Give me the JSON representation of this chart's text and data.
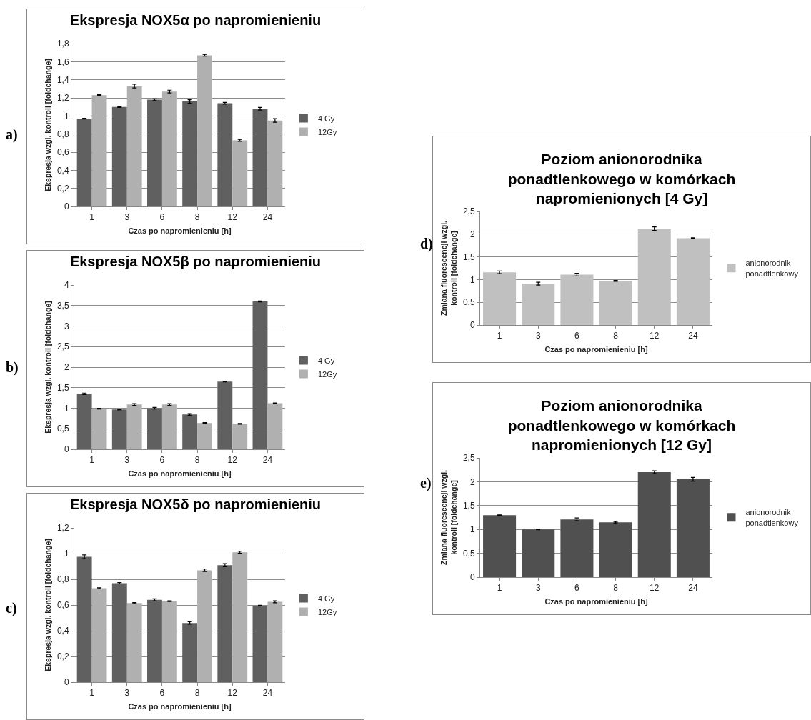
{
  "chart_data": [
    {
      "type": "bar",
      "title": "Ekspresja NOX5α po napromienieniu",
      "xlabel": "Czas po napromienieniu [h]",
      "ylabel": "Ekspresja wzgl. kontroli [foldchange]",
      "annotations": [
        "a)"
      ],
      "categories": [
        "1",
        "3",
        "6",
        "8",
        "12",
        "24"
      ],
      "series": [
        {
          "name": "4 Gy",
          "color": "#606060",
          "values": [
            0.97,
            1.1,
            1.18,
            1.16,
            1.14,
            1.08
          ],
          "errors": [
            0.005,
            0.005,
            0.01,
            0.02,
            0.01,
            0.015
          ]
        },
        {
          "name": "12Gy",
          "color": "#b0b0b0",
          "values": [
            1.23,
            1.33,
            1.27,
            1.67,
            0.73,
            0.95
          ],
          "errors": [
            0.005,
            0.02,
            0.015,
            0.01,
            0.01,
            0.02
          ]
        }
      ],
      "ylim": [
        0,
        1.8
      ],
      "yticks": [
        0,
        {
          "value": 0.2,
          "label": "0,2"
        },
        {
          "value": 0.4,
          "label": "0,4"
        },
        {
          "value": 0.6,
          "label": "0,6"
        },
        {
          "value": 0.8,
          "label": "0,8"
        },
        1,
        {
          "value": 1.2,
          "label": "1,2"
        },
        {
          "value": 1.4,
          "label": "1,4"
        },
        {
          "value": 1.6,
          "label": "1,6"
        },
        {
          "value": 1.8,
          "label": "1,8"
        }
      ],
      "grid": "y",
      "legend": "right"
    },
    {
      "type": "bar",
      "title": "Ekspresja NOX5β po napromienieniu",
      "xlabel": "Czas po napromienieniu [h]",
      "ylabel": "Ekspresja wzgl. kontroli [foldchange]",
      "annotations": [
        "b)"
      ],
      "categories": [
        "1",
        "3",
        "6",
        "8",
        "12",
        "24"
      ],
      "series": [
        {
          "name": "4 Gy",
          "color": "#606060",
          "values": [
            1.35,
            0.97,
            1.0,
            0.85,
            1.65,
            3.6
          ],
          "errors": [
            0.02,
            0.01,
            0.02,
            0.02,
            0.01,
            0.01
          ]
        },
        {
          "name": "12Gy",
          "color": "#b0b0b0",
          "values": [
            0.99,
            1.09,
            1.09,
            0.64,
            0.62,
            1.12
          ],
          "errors": [
            0.01,
            0.02,
            0.02,
            0.01,
            0.01,
            0.01
          ]
        }
      ],
      "ylim": [
        0,
        4
      ],
      "yticks": [
        0,
        {
          "value": 0.5,
          "label": "0,5"
        },
        1,
        {
          "value": 1.5,
          "label": "1,5"
        },
        2,
        {
          "value": 2.5,
          "label": "2,5"
        },
        3,
        {
          "value": 3.5,
          "label": "3,5"
        },
        4
      ],
      "grid": "y",
      "legend": "right"
    },
    {
      "type": "bar",
      "title": "Ekspresja NOX5δ po napromienieniu",
      "xlabel": "Czas po napromienieniu [h]",
      "ylabel": "Ekspresja wzgl. kontroli [foldchange]",
      "annotations": [
        "c)"
      ],
      "categories": [
        "1",
        "3",
        "6",
        "8",
        "12",
        "24"
      ],
      "series": [
        {
          "name": "4 Gy",
          "color": "#606060",
          "values": [
            0.975,
            0.77,
            0.64,
            0.46,
            0.91,
            0.595
          ],
          "errors": [
            0.015,
            0.005,
            0.008,
            0.01,
            0.012,
            0.003
          ]
        },
        {
          "name": "12Gy",
          "color": "#b0b0b0",
          "values": [
            0.73,
            0.615,
            0.63,
            0.87,
            1.01,
            0.625
          ],
          "errors": [
            0.004,
            0.004,
            0.003,
            0.01,
            0.008,
            0.008
          ]
        }
      ],
      "ylim": [
        0,
        1.2
      ],
      "yticks": [
        0,
        {
          "value": 0.2,
          "label": "0,2"
        },
        {
          "value": 0.4,
          "label": "0,4"
        },
        {
          "value": 0.6,
          "label": "0,6"
        },
        {
          "value": 0.8,
          "label": "0,8"
        },
        1,
        {
          "value": 1.2,
          "label": "1,2"
        }
      ],
      "grid": "y",
      "legend": "right"
    },
    {
      "type": "bar",
      "title": "Poziom anionorodnika ponadtlenkowego w komórkach napromienionych [4 Gy]",
      "xlabel": "Czas po napromienieniu [h]",
      "ylabel": "Zmiana fluorescencji wzgl. kontroli [foldchange]",
      "annotations": [
        "d)"
      ],
      "categories": [
        "1",
        "3",
        "6",
        "8",
        "12",
        "24"
      ],
      "series": [
        {
          "name": "anionorodnik ponadtlenkowy",
          "color": "#c0c0c0",
          "values": [
            1.16,
            0.91,
            1.11,
            0.97,
            2.12,
            1.91
          ],
          "errors": [
            0.03,
            0.03,
            0.03,
            0.01,
            0.04,
            0.01
          ]
        }
      ],
      "ylim": [
        0,
        2.5
      ],
      "yticks": [
        0,
        {
          "value": 0.5,
          "label": "0,5"
        },
        1,
        {
          "value": 1.5,
          "label": "1,5"
        },
        2,
        {
          "value": 2.5,
          "label": "2,5"
        }
      ],
      "grid": "y",
      "legend": "right"
    },
    {
      "type": "bar",
      "title": "Poziom anionorodnika ponadtlenkowego w komórkach napromienionych [12 Gy]",
      "xlabel": "Czas po napromienieniu [h]",
      "ylabel": "Zmiana fluorescencji wzgl. kontroli [foldchange]",
      "annotations": [
        "e)"
      ],
      "categories": [
        "1",
        "3",
        "6",
        "8",
        "12",
        "24"
      ],
      "series": [
        {
          "name": "anionorodnik ponadtlenkowy",
          "color": "#505050",
          "values": [
            1.3,
            1.0,
            1.21,
            1.15,
            2.2,
            2.05
          ],
          "errors": [
            0.005,
            0.005,
            0.03,
            0.015,
            0.03,
            0.04
          ]
        }
      ],
      "ylim": [
        0,
        2.5
      ],
      "yticks": [
        0,
        {
          "value": 0.5,
          "label": "0,5"
        },
        1,
        {
          "value": 1.5,
          "label": "1,5"
        },
        2,
        {
          "value": 2.5,
          "label": "2,5"
        }
      ],
      "grid": "y",
      "legend": "right"
    }
  ]
}
